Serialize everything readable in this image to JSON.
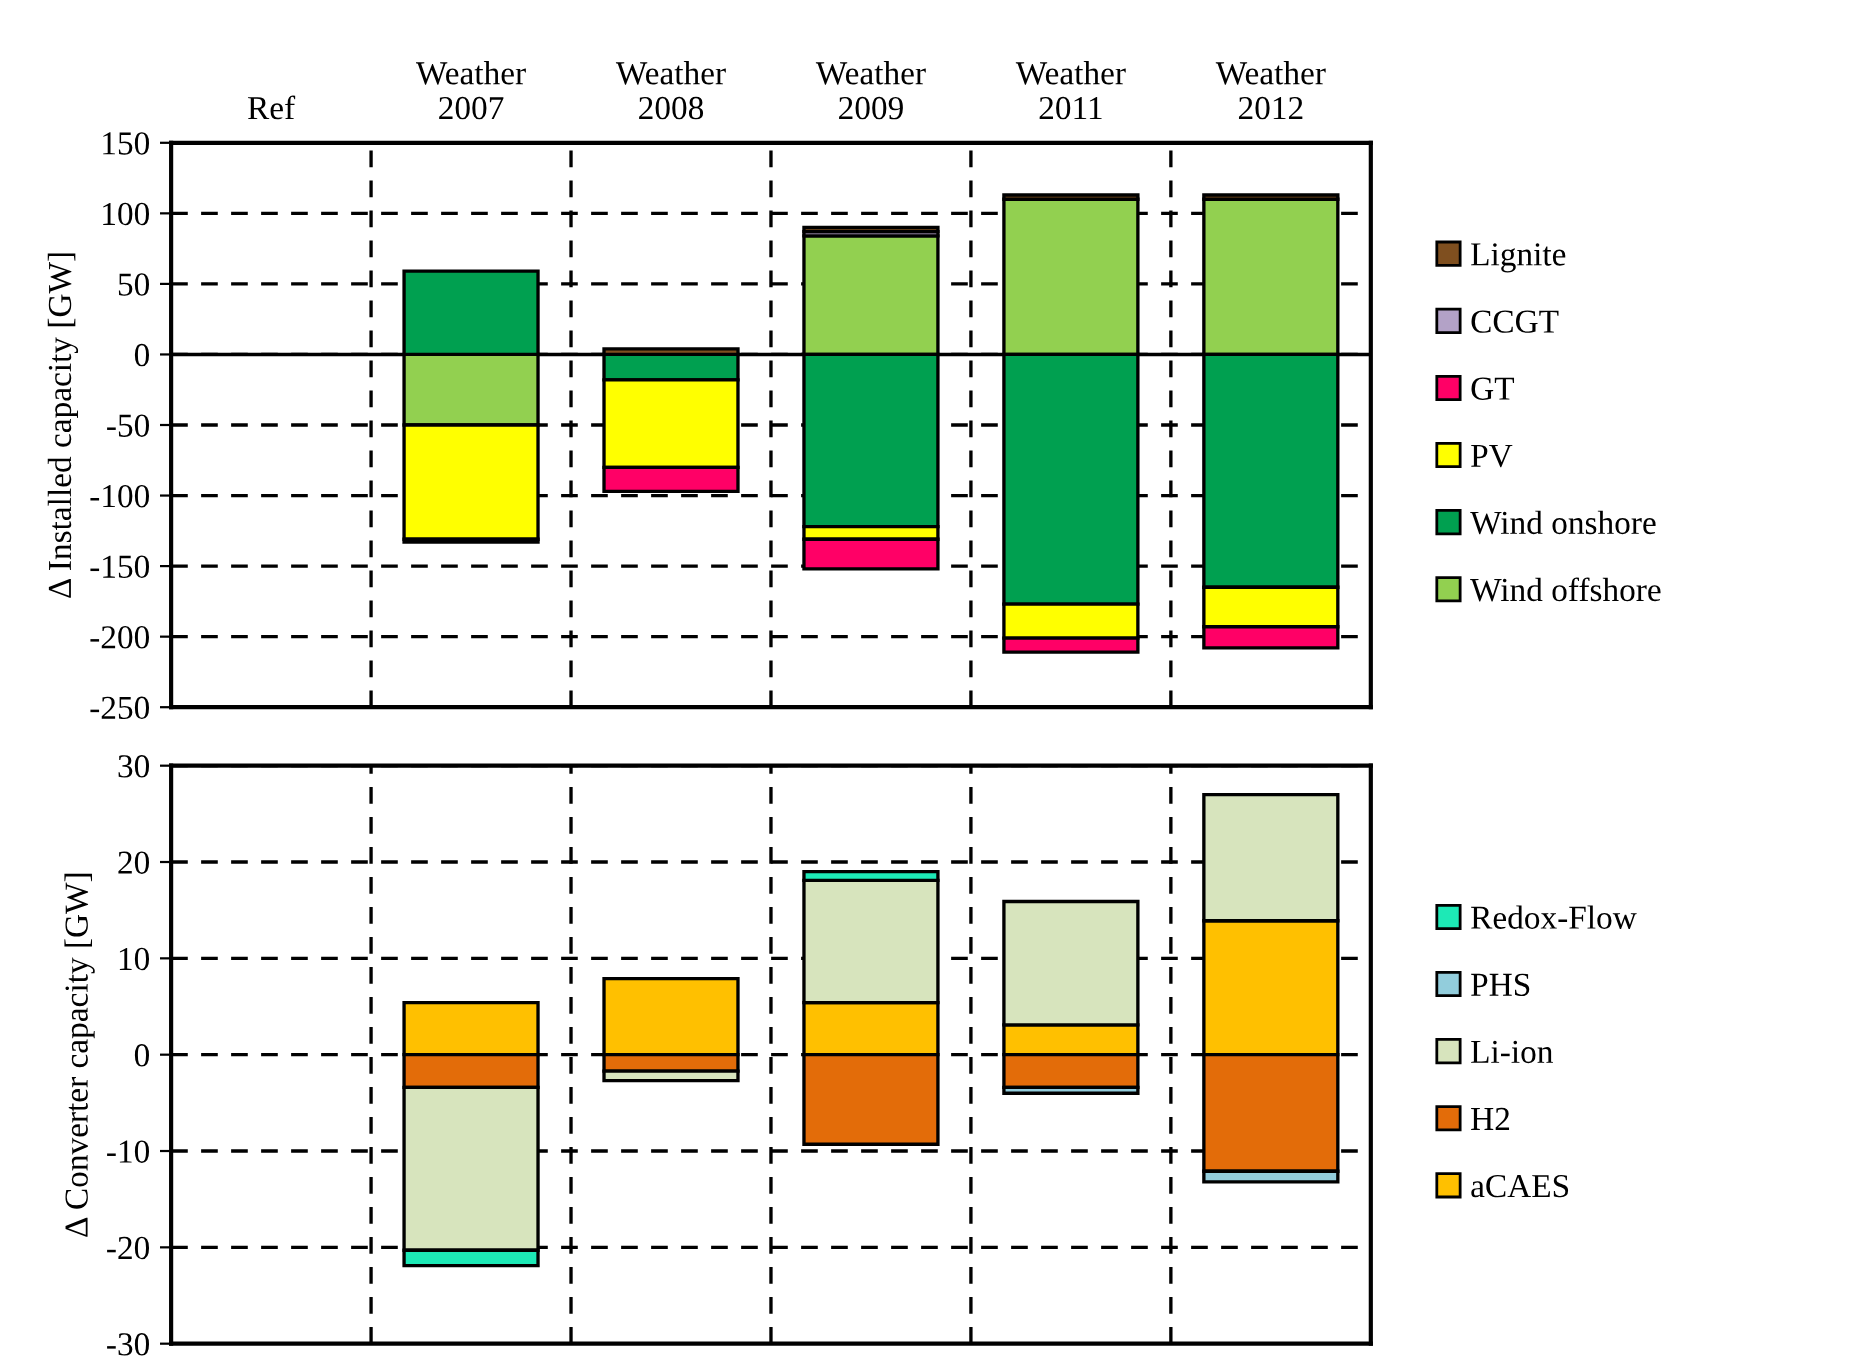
{
  "chart_data": [
    {
      "type": "bar",
      "stacked": true,
      "ylabel": "Δ Installed capacity [GW]",
      "categories": [
        "Ref",
        "Weather\n2007",
        "Weather\n2008",
        "Weather\n2009",
        "Weather\n2011",
        "Weather\n2012"
      ],
      "series": [
        {
          "name": "Wind offshore",
          "color": "#92d050",
          "values": [
            0,
            -50,
            0,
            84,
            110,
            110
          ]
        },
        {
          "name": "Wind onshore",
          "color": "#00a050",
          "values": [
            0,
            59,
            -18,
            -122,
            -177,
            -165
          ]
        },
        {
          "name": "PV",
          "color": "#ffff00",
          "values": [
            0,
            -81,
            -62,
            -9,
            -24,
            -28
          ]
        },
        {
          "name": "GT",
          "color": "#ff0066",
          "values": [
            0,
            0,
            -17,
            -21,
            -10,
            -15
          ]
        },
        {
          "name": "CCGT",
          "color": "#b3a2c7",
          "values": [
            0,
            0,
            0,
            3,
            null,
            0
          ]
        },
        {
          "name": "Lignite",
          "color": "#7f4f1f",
          "values": [
            0,
            -2,
            4,
            3,
            3,
            3
          ]
        }
      ],
      "ylim": [
        -250,
        150
      ],
      "yticks": [
        -250,
        -200,
        -150,
        -100,
        -50,
        0,
        50,
        100,
        150
      ],
      "ref_lines": [
        {
          "axis": "y",
          "value": 0,
          "color": "#000000",
          "line_style": "solid"
        }
      ],
      "grid": true,
      "legend": "right"
    },
    {
      "type": "bar",
      "stacked": true,
      "ylabel": "Δ Converter capacity [GW]",
      "categories": [
        null,
        null,
        null,
        null,
        null,
        null
      ],
      "series": [
        {
          "name": "aCAES",
          "color": "#ffc000",
          "values": [
            0,
            5.4,
            7.9,
            5.4,
            3.1,
            13.9
          ]
        },
        {
          "name": "H2",
          "color": "#e36c09",
          "values": [
            0,
            -3.4,
            -1.7,
            -9.3,
            -3.4,
            -12.1
          ]
        },
        {
          "name": "Li-ion",
          "color": "#d7e4bd",
          "values": [
            0,
            -16.9,
            -1.0,
            12.7,
            12.8,
            13.1
          ]
        },
        {
          "name": "PHS",
          "color": "#92cddc",
          "values": [
            0,
            0,
            0,
            0,
            -0.6,
            -1.1
          ]
        },
        {
          "name": "Redox-Flow",
          "color": "#1de9b6",
          "values": [
            0,
            -1.6,
            0,
            0.9,
            0,
            0
          ]
        }
      ],
      "ylim": [
        -30,
        30
      ],
      "yticks": [
        -30,
        -20,
        -10,
        0,
        10,
        20,
        30
      ],
      "grid": true,
      "legend": "right"
    }
  ]
}
